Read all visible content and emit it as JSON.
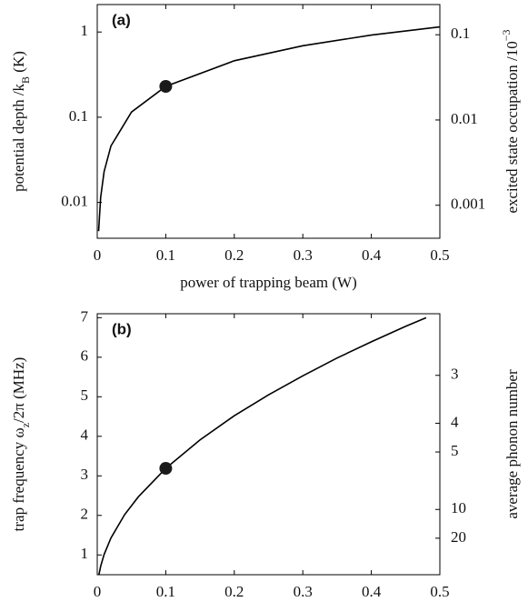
{
  "chart_data": [
    {
      "type": "line",
      "panel_label": "(a)",
      "xlabel": "power of trapping beam (W)",
      "ylabel": [
        "potential depth /k",
        "B",
        " (K)"
      ],
      "y2label": [
        "excited state occupation /10",
        "−3"
      ],
      "xlim": [
        0,
        0.5
      ],
      "xticks": [
        0,
        0.1,
        0.2,
        0.3,
        0.4,
        0.5
      ],
      "yscale": "log",
      "ylim": [
        0.0038,
        2.1
      ],
      "yticks": [
        0.01,
        0.1,
        1
      ],
      "y2scale": "log",
      "y2lim": [
        0.00041,
        0.226
      ],
      "y2ticks": [
        0.001,
        0.01,
        0.1
      ],
      "x": [
        0.002,
        0.005,
        0.01,
        0.02,
        0.05,
        0.1,
        0.2,
        0.3,
        0.4,
        0.5
      ],
      "series": [
        {
          "color": "#000000",
          "values": [
            0.0046,
            0.0115,
            0.023,
            0.046,
            0.115,
            0.23,
            0.46,
            0.69,
            0.92,
            1.15
          ]
        }
      ],
      "points": {
        "color": "#1a1a1a",
        "x": [
          0.1
        ],
        "values": [
          0.23
        ]
      }
    },
    {
      "type": "line",
      "panel_label": "(b)",
      "xlabel": "power of trapping beam (W)",
      "ylabel": [
        "trap frequency ω",
        "z",
        "/2π (MHz)"
      ],
      "y2label": [
        "average phonon number"
      ],
      "xlim": [
        0,
        0.5
      ],
      "xticks": [
        0,
        0.1,
        0.2,
        0.3,
        0.4,
        0.5
      ],
      "yscale": "linear",
      "ylim": [
        0.5,
        7.1
      ],
      "yticks": [
        1,
        2,
        3,
        4,
        5,
        6,
        7
      ],
      "y2scale": "reciprocal",
      "y2lim": [
        -74,
        2.27
      ],
      "y2ticks": [
        3,
        4,
        5,
        10,
        20
      ],
      "x": [
        0.0025,
        0.005,
        0.01,
        0.02,
        0.04,
        0.06,
        0.1,
        0.15,
        0.2,
        0.25,
        0.3,
        0.35,
        0.4,
        0.45,
        0.48
      ],
      "series": [
        {
          "color": "#000000",
          "values": [
            0.505,
            0.714,
            1.01,
            1.43,
            2.02,
            2.47,
            3.19,
            3.91,
            4.52,
            5.05,
            5.53,
            5.98,
            6.39,
            6.78,
            7.0
          ]
        }
      ],
      "points": {
        "color": "#1a1a1a",
        "x": [
          0.1
        ],
        "values": [
          3.19
        ]
      }
    }
  ]
}
